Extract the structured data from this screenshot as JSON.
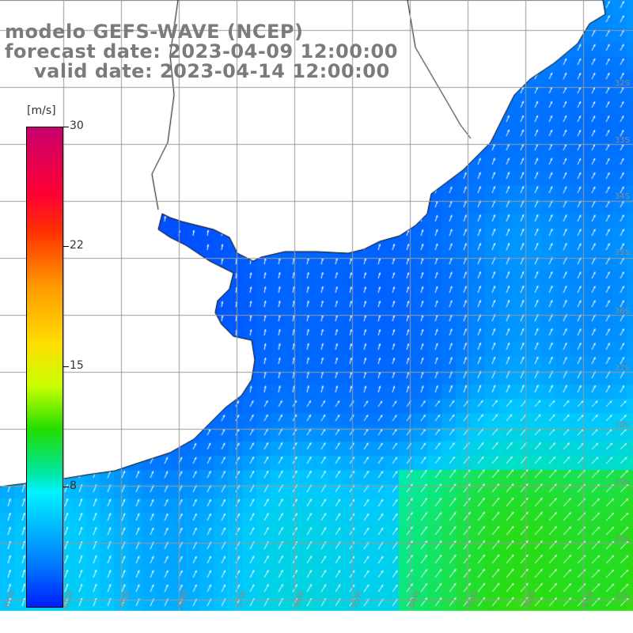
{
  "title": {
    "line1": "modelo GEFS-WAVE (NCEP)",
    "line2": "forecast date: 2023-04-09 12:00:00",
    "line3": "valid date: 2023-04-14 12:00:00"
  },
  "colorbar": {
    "unit": "[m/s]",
    "ticks": [
      "30",
      "22",
      "15",
      "8"
    ],
    "tick_values": [
      30,
      22,
      15,
      8
    ],
    "range": [
      0,
      30
    ]
  },
  "map": {
    "lat_labels": [
      "32S",
      "33S",
      "34S",
      "35S",
      "36S",
      "37S",
      "38S",
      "39S",
      "40S",
      "41S"
    ],
    "lon_labels": [
      "61W",
      "60W",
      "59W",
      "58W",
      "57W",
      "56W",
      "55W",
      "54W",
      "53W",
      "52W",
      "51W"
    ],
    "colors": {
      "land": "#ffffff",
      "grid": "#9a9a9a",
      "coast": "#000000",
      "arrows": "#ffffff"
    }
  }
}
